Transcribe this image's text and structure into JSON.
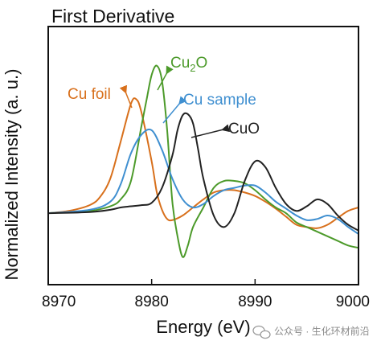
{
  "chart_data": {
    "type": "line",
    "title": "First Derivative",
    "xlabel": "Energy (eV)",
    "ylabel": "Normalized Intensity (a. u.)",
    "xlim": [
      8970,
      9000
    ],
    "ylim": [
      -0.62,
      1.62
    ],
    "x_ticks": [
      8970,
      8980,
      8990,
      9000
    ],
    "x_tick_labels": [
      "8970",
      "8980",
      "8990",
      "9000"
    ],
    "y_ticks_shown": false,
    "grid": false,
    "colors": {
      "cu_foil": "#d8701c",
      "cu2o": "#4c9a2a",
      "cu_sample": "#3f8fd0",
      "cuo": "#222222"
    },
    "series": [
      {
        "name": "Cu foil",
        "color_key": "cu_foil",
        "x": [
          8970,
          8972,
          8974,
          8975,
          8976,
          8977,
          8978,
          8978.5,
          8979,
          8980,
          8980.5,
          8981,
          8981.5,
          8982,
          8983,
          8984,
          8985,
          8986,
          8987,
          8988,
          8989,
          8990,
          8991,
          8992,
          8993,
          8994,
          8995,
          8996,
          8997,
          8998,
          8999,
          9000
        ],
        "y": [
          0.0,
          0.02,
          0.07,
          0.14,
          0.3,
          0.62,
          0.95,
          0.99,
          0.88,
          0.45,
          0.18,
          0.03,
          -0.05,
          -0.06,
          -0.02,
          0.05,
          0.12,
          0.18,
          0.2,
          0.2,
          0.18,
          0.15,
          0.1,
          0.04,
          -0.03,
          -0.1,
          -0.12,
          -0.13,
          -0.1,
          -0.04,
          0.02,
          0.05
        ]
      },
      {
        "name": "Cu₂O",
        "color_key": "cu2o",
        "x": [
          8970,
          8974,
          8976,
          8977,
          8978,
          8979,
          8979.5,
          8980,
          8980.5,
          8981,
          8981.5,
          8982,
          8982.5,
          8983,
          8983.5,
          8984,
          8985,
          8986,
          8987,
          8988,
          8989,
          8990,
          8991,
          8992,
          8993,
          8994,
          8995,
          8996,
          8997,
          8998,
          8999,
          9000
        ],
        "y": [
          0.0,
          0.02,
          0.06,
          0.12,
          0.28,
          0.75,
          0.98,
          1.2,
          1.28,
          1.15,
          0.72,
          0.1,
          -0.2,
          -0.38,
          -0.28,
          -0.12,
          0.05,
          0.22,
          0.28,
          0.28,
          0.26,
          0.2,
          0.12,
          0.05,
          0.0,
          -0.08,
          -0.12,
          -0.16,
          -0.2,
          -0.24,
          -0.28,
          -0.3
        ]
      },
      {
        "name": "Cu sample",
        "color_key": "cu_sample",
        "x": [
          8970,
          8974,
          8976,
          8977,
          8978,
          8979,
          8980,
          8981,
          8982,
          8983,
          8984,
          8985,
          8986,
          8987,
          8988,
          8989,
          8990,
          8991,
          8992,
          8993,
          8994,
          8995,
          8996,
          8997,
          8998,
          8999,
          9000
        ],
        "y": [
          0.0,
          0.03,
          0.1,
          0.25,
          0.52,
          0.68,
          0.72,
          0.55,
          0.3,
          0.12,
          0.05,
          0.08,
          0.15,
          0.2,
          0.22,
          0.24,
          0.24,
          0.18,
          0.1,
          0.04,
          -0.02,
          -0.06,
          -0.05,
          -0.02,
          -0.05,
          -0.12,
          -0.18
        ]
      },
      {
        "name": "CuO",
        "color_key": "cuo",
        "x": [
          8970,
          8974,
          8976,
          8977,
          8978,
          8979,
          8980,
          8981,
          8982,
          8982.5,
          8983,
          8983.5,
          8984,
          8984.5,
          8985,
          8986,
          8987,
          8988,
          8989,
          8990,
          8991,
          8992,
          8993,
          8994,
          8995,
          8996,
          8997,
          8998,
          8999,
          9000
        ],
        "y": [
          0.0,
          0.01,
          0.03,
          0.05,
          0.06,
          0.07,
          0.09,
          0.22,
          0.5,
          0.72,
          0.85,
          0.86,
          0.78,
          0.55,
          0.3,
          -0.02,
          -0.12,
          0.0,
          0.28,
          0.45,
          0.4,
          0.22,
          0.08,
          0.02,
          0.06,
          0.12,
          0.08,
          -0.02,
          -0.1,
          -0.15
        ]
      }
    ],
    "annotations": [
      {
        "text": "Cu foil",
        "color_key": "cu_foil",
        "points_to": "Cu foil"
      },
      {
        "text": "Cu",
        "sub": "2",
        "text_after": "O",
        "color_key": "cu2o",
        "points_to": "Cu₂O"
      },
      {
        "text": "Cu sample",
        "color_key": "cu_sample",
        "points_to": "Cu sample"
      },
      {
        "text": "CuO",
        "color_key": "cuo",
        "points_to": "CuO"
      }
    ]
  },
  "watermark": {
    "icon": "wechat-icon",
    "text": "公众号 · 生化环材前沿"
  }
}
